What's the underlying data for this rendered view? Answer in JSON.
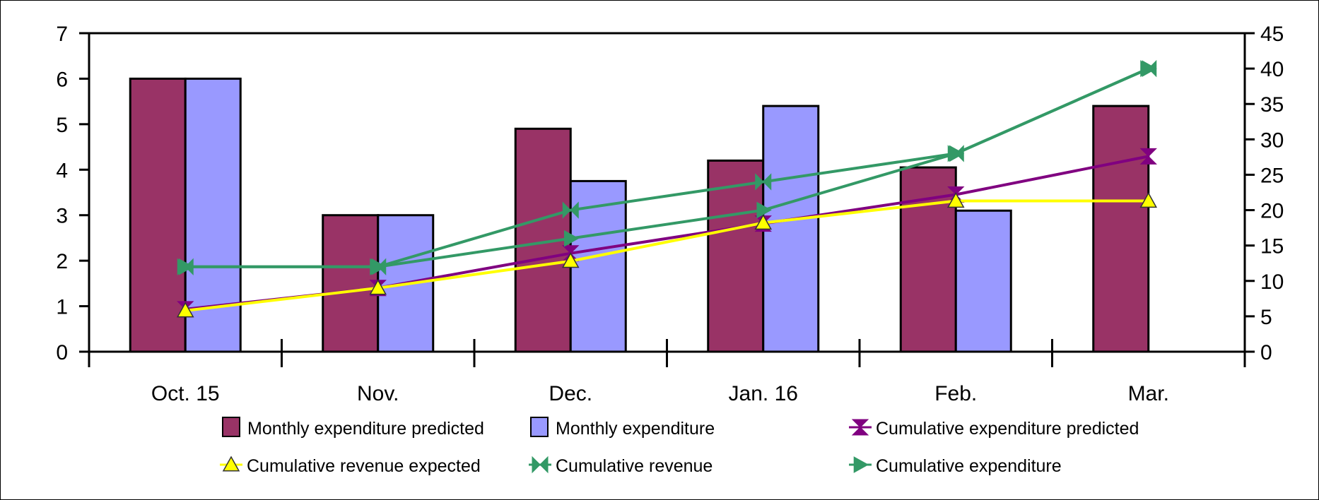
{
  "chart_data": {
    "type": "bar",
    "categories": [
      "Oct. 15",
      "Nov.",
      "Dec.",
      "Jan. 16",
      "Feb.",
      "Mar."
    ],
    "title": "",
    "xlabel": "",
    "ylabel": "",
    "ylim": [
      0,
      7
    ],
    "y2lim": [
      0,
      45
    ],
    "y_ticks": [
      "0",
      "1",
      "2",
      "3",
      "4",
      "5",
      "6",
      "7"
    ],
    "y2_ticks": [
      "0",
      "5",
      "10",
      "15",
      "20",
      "25",
      "30",
      "35",
      "40",
      "45"
    ],
    "grid": false,
    "legend_position": "bottom",
    "bar_series": [
      {
        "name": "Monthly expenditure predicted",
        "color": "#993366",
        "axis": "left",
        "values": [
          6,
          3,
          4.9,
          4.2,
          4.05,
          5.4
        ]
      },
      {
        "name": "Monthly expenditure",
        "color": "#9999ff",
        "axis": "left",
        "values": [
          6,
          3,
          3.75,
          5.4,
          3.1,
          null
        ]
      }
    ],
    "line_series": [
      {
        "name": "Cumulative expenditure predicted",
        "color": "#800080",
        "marker": "hourglass",
        "axis": "right",
        "values": [
          6,
          9,
          13.9,
          18.1,
          22.2,
          27.6
        ]
      },
      {
        "name": "Cumulative revenue expected",
        "color": "#ffff00",
        "marker": "triangle-up",
        "axis": "right",
        "values": [
          5.8,
          9,
          12.8,
          18.2,
          21.3,
          21.3
        ]
      },
      {
        "name": "Cumulative revenue",
        "color": "#339966",
        "marker": "bowtie",
        "axis": "right",
        "values": [
          12,
          12,
          20,
          24,
          28,
          40
        ]
      },
      {
        "name": "Cumulative expenditure",
        "color": "#339966",
        "marker": "triangle-right",
        "axis": "right",
        "values": [
          12,
          12,
          16,
          20,
          28,
          40
        ]
      }
    ]
  }
}
